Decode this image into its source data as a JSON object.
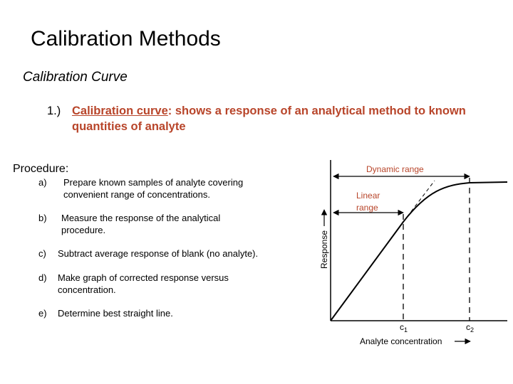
{
  "title": "Calibration Methods",
  "subtitle": "Calibration Curve",
  "definition": {
    "number": "1.)",
    "term": "Calibration curve",
    "text": ": shows a response of an analytical method to known quantities of analyte"
  },
  "procedure": {
    "heading": "Procedure:",
    "steps": [
      {
        "label": "a)",
        "text": "Prepare known samples of analyte covering convenient range of concentrations."
      },
      {
        "label": "b)",
        "text": "Measure the response of the analytical procedure."
      },
      {
        "label": "c)",
        "text": "Subtract average response of blank (no analyte)."
      },
      {
        "label": "d)",
        "text": "Make graph of corrected response versus concentration."
      },
      {
        "label": "e)",
        "text": "Determine best straight line."
      }
    ]
  },
  "figure": {
    "dynamic_range_label": "Dynamic range",
    "linear_range_label_1": "Linear",
    "linear_range_label_2": "range",
    "y_axis_label": "Response",
    "x_axis_label": "Analyte concentration",
    "c1_label": "c",
    "c1_sub": "1",
    "c2_label": "c",
    "c2_sub": "2",
    "label_color": "#b8452a"
  }
}
